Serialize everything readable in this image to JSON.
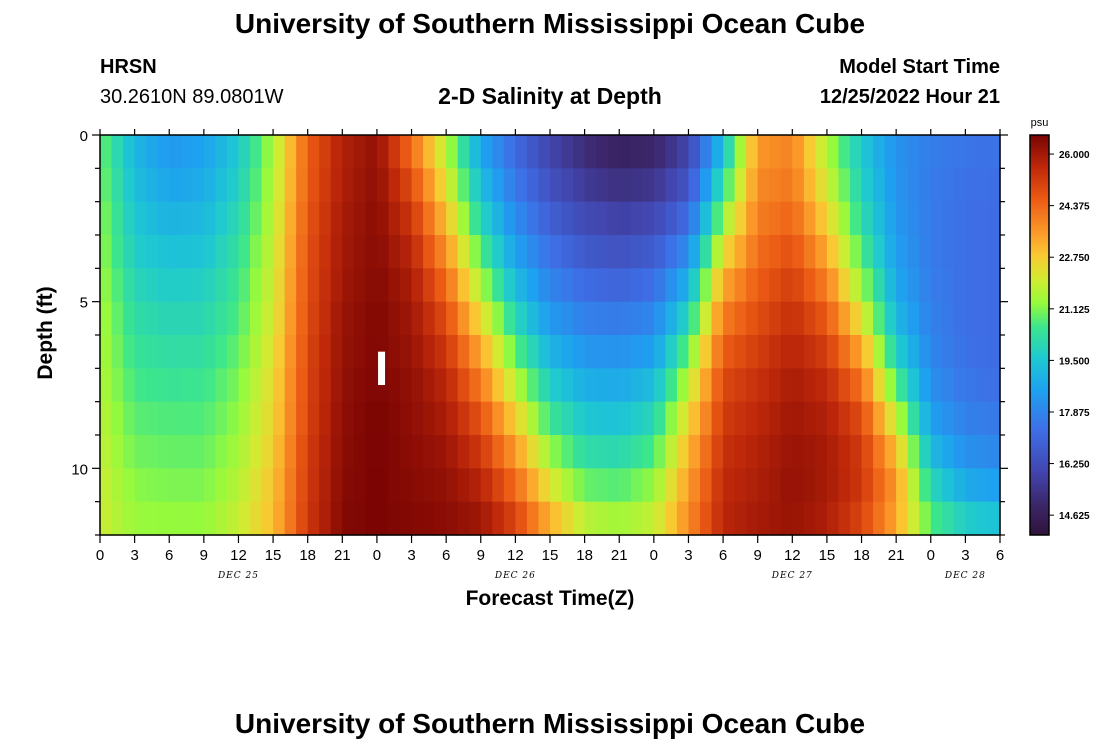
{
  "header": {
    "title": "University of Southern Mississippi Ocean Cube",
    "station_code": "HRSN",
    "station_coords": "30.2610N  89.0801W",
    "subtitle": "2-D Salinity at Depth",
    "model_label": "Model Start Time",
    "model_time": "12/25/2022 Hour 21"
  },
  "footer": {
    "title": "University of Southern Mississippi Ocean Cube"
  },
  "chart_data": {
    "type": "heatmap",
    "title": "2-D Salinity at Depth",
    "xlabel": "Forecast Time(Z)",
    "ylabel": "Depth (ft)",
    "x_units": "hours from 00Z Dec 25",
    "x_range": [
      0,
      78
    ],
    "x_ticks": [
      0,
      3,
      6,
      9,
      12,
      15,
      18,
      21,
      24,
      27,
      30,
      33,
      36,
      39,
      42,
      45,
      48,
      51,
      54,
      57,
      60,
      63,
      66,
      69,
      72,
      75,
      78
    ],
    "x_tick_labels": [
      "0",
      "3",
      "6",
      "9",
      "12",
      "15",
      "18",
      "21",
      "0",
      "3",
      "6",
      "9",
      "12",
      "15",
      "18",
      "21",
      "0",
      "3",
      "6",
      "9",
      "12",
      "15",
      "18",
      "21",
      "0",
      "3",
      "6"
    ],
    "day_labels": [
      {
        "label": "DEC 25",
        "x": 12
      },
      {
        "label": "DEC 26",
        "x": 36
      },
      {
        "label": "DEC 27",
        "x": 60
      },
      {
        "label": "DEC 28",
        "x": 75
      }
    ],
    "y_range": [
      0,
      12
    ],
    "y_inverted": true,
    "y_ticks": [
      0,
      5,
      10
    ],
    "colorbar": {
      "unit": "psu",
      "min": 14.0,
      "max": 26.6,
      "ticks": [
        "26.000",
        "24.375",
        "22.750",
        "21.125",
        "19.500",
        "17.875",
        "16.250",
        "14.625"
      ],
      "tick_values": [
        26.0,
        24.375,
        22.75,
        21.125,
        19.5,
        17.875,
        16.25,
        14.625
      ]
    },
    "marker": {
      "x": 24.4,
      "y_top": 6.5,
      "y_bottom": 7.5
    },
    "depths_ft": [
      0,
      1,
      2,
      3,
      4,
      5,
      6,
      7,
      8,
      9,
      10,
      11,
      12
    ],
    "keyframe_hours": [
      0,
      3,
      6,
      9,
      12,
      15,
      18,
      21,
      24,
      27,
      30,
      33,
      36,
      39,
      42,
      45,
      48,
      51,
      54,
      57,
      60,
      63,
      66,
      69,
      72,
      75,
      78
    ],
    "salinity_profiles_psu": [
      [
        21.0,
        21.0,
        21.2,
        21.3,
        21.4,
        21.5,
        21.6,
        21.6,
        21.7,
        21.8,
        21.9,
        22.0,
        22.0
      ],
      [
        19.0,
        19.2,
        19.4,
        19.6,
        19.8,
        20.1,
        20.3,
        20.5,
        20.7,
        20.9,
        21.1,
        21.3,
        21.4
      ],
      [
        18.2,
        18.5,
        18.8,
        19.2,
        19.5,
        19.8,
        20.1,
        20.3,
        20.6,
        20.8,
        21.0,
        21.2,
        21.4
      ],
      [
        18.5,
        18.7,
        19.0,
        19.3,
        19.6,
        19.9,
        20.1,
        20.4,
        20.6,
        20.8,
        21.0,
        21.2,
        21.4
      ],
      [
        19.5,
        19.7,
        19.9,
        20.2,
        20.4,
        20.6,
        20.8,
        21.0,
        21.2,
        21.4,
        21.6,
        21.8,
        22.0
      ],
      [
        21.5,
        21.6,
        21.7,
        21.9,
        22.0,
        22.1,
        22.2,
        22.4,
        22.5,
        22.6,
        22.8,
        22.9,
        23.0
      ],
      [
        24.5,
        24.5,
        24.6,
        24.7,
        24.8,
        24.8,
        24.9,
        25.0,
        25.0,
        25.1,
        25.2,
        25.2,
        25.3
      ],
      [
        25.8,
        25.8,
        25.9,
        26.0,
        26.0,
        26.1,
        26.2,
        26.2,
        26.3,
        26.3,
        26.4,
        26.4,
        26.5
      ],
      [
        26.2,
        26.3,
        26.3,
        26.4,
        26.4,
        26.5,
        26.5,
        26.5,
        26.6,
        26.6,
        26.6,
        26.6,
        26.6
      ],
      [
        24.0,
        24.6,
        25.1,
        25.5,
        25.8,
        26.0,
        26.1,
        26.2,
        26.3,
        26.3,
        26.4,
        26.4,
        26.5
      ],
      [
        21.5,
        22.0,
        22.6,
        23.3,
        24.0,
        24.6,
        25.1,
        25.5,
        25.8,
        26.0,
        26.2,
        26.3,
        26.4
      ],
      [
        18.5,
        19.0,
        19.6,
        20.3,
        21.1,
        22.0,
        22.9,
        23.7,
        24.4,
        25.0,
        25.5,
        25.9,
        26.2
      ],
      [
        17.0,
        17.3,
        17.8,
        18.3,
        18.9,
        19.6,
        20.4,
        21.3,
        22.2,
        23.1,
        23.9,
        24.7,
        25.3
      ],
      [
        15.8,
        16.2,
        16.6,
        17.1,
        17.6,
        18.1,
        18.7,
        19.4,
        20.1,
        20.9,
        21.8,
        22.7,
        23.6
      ],
      [
        15.0,
        15.4,
        15.9,
        16.4,
        16.9,
        17.5,
        18.0,
        18.6,
        19.2,
        19.8,
        20.5,
        21.3,
        22.2
      ],
      [
        14.5,
        15.0,
        15.6,
        16.1,
        16.7,
        17.3,
        17.9,
        18.5,
        19.1,
        19.7,
        20.4,
        21.1,
        21.8
      ],
      [
        14.7,
        15.2,
        15.8,
        16.4,
        17.0,
        17.6,
        18.2,
        18.9,
        19.6,
        20.3,
        21.0,
        21.6,
        22.1
      ],
      [
        15.8,
        16.2,
        16.8,
        17.6,
        18.5,
        19.5,
        20.5,
        21.4,
        22.2,
        22.8,
        23.3,
        23.6,
        23.9
      ],
      [
        19.0,
        19.8,
        20.8,
        21.9,
        22.9,
        23.7,
        24.3,
        24.8,
        25.1,
        25.3,
        25.5,
        25.6,
        25.7
      ],
      [
        23.5,
        23.7,
        23.9,
        24.1,
        24.4,
        24.7,
        25.0,
        25.3,
        25.5,
        25.7,
        25.8,
        25.9,
        26.0
      ],
      [
        23.8,
        24.0,
        24.2,
        24.6,
        25.0,
        25.3,
        25.6,
        25.8,
        26.0,
        26.1,
        26.2,
        26.2,
        26.1
      ],
      [
        21.5,
        21.8,
        22.3,
        22.9,
        23.6,
        24.3,
        24.9,
        25.4,
        25.7,
        25.9,
        26.0,
        25.9,
        25.8
      ],
      [
        19.5,
        19.7,
        20.0,
        20.4,
        21.0,
        21.8,
        22.8,
        23.8,
        24.6,
        25.1,
        25.3,
        25.2,
        24.8
      ],
      [
        18.2,
        18.2,
        18.3,
        18.4,
        18.6,
        18.9,
        19.4,
        20.2,
        21.3,
        22.5,
        23.4,
        23.6,
        23.0
      ],
      [
        17.7,
        17.6,
        17.6,
        17.6,
        17.6,
        17.7,
        17.8,
        18.0,
        18.3,
        18.8,
        19.6,
        20.4,
        21.0
      ],
      [
        17.5,
        17.4,
        17.3,
        17.3,
        17.3,
        17.3,
        17.3,
        17.4,
        17.6,
        17.9,
        18.4,
        19.2,
        20.2
      ],
      [
        17.4,
        17.3,
        17.2,
        17.2,
        17.2,
        17.2,
        17.2,
        17.2,
        17.4,
        17.7,
        18.1,
        18.9,
        19.8
      ]
    ]
  }
}
